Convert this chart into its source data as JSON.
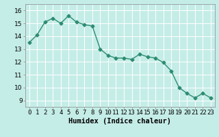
{
  "x": [
    0,
    1,
    2,
    3,
    4,
    5,
    6,
    7,
    8,
    9,
    10,
    11,
    12,
    13,
    14,
    15,
    16,
    17,
    18,
    19,
    20,
    21,
    22,
    23
  ],
  "y": [
    13.5,
    14.1,
    15.1,
    15.4,
    15.0,
    15.6,
    15.1,
    14.9,
    14.8,
    13.0,
    12.5,
    12.3,
    12.3,
    12.2,
    12.6,
    12.4,
    12.3,
    11.95,
    11.3,
    10.0,
    9.55,
    9.2,
    9.55,
    9.2
  ],
  "line_color": "#2d8c72",
  "marker": "D",
  "markersize": 2.5,
  "linewidth": 1.0,
  "xlabel": "Humidex (Indice chaleur)",
  "xlim": [
    -0.5,
    23.5
  ],
  "ylim": [
    8.5,
    16.5
  ],
  "yticks": [
    9,
    10,
    11,
    12,
    13,
    14,
    15,
    16
  ],
  "xtick_labels": [
    "0",
    "1",
    "2",
    "3",
    "4",
    "5",
    "6",
    "7",
    "8",
    "9",
    "10",
    "11",
    "12",
    "13",
    "14",
    "15",
    "16",
    "17",
    "18",
    "19",
    "20",
    "21",
    "22",
    "23"
  ],
  "bg_color": "#c5ede8",
  "grid_color": "#ffffff",
  "tick_fontsize": 6.5,
  "xlabel_fontsize": 7.5
}
